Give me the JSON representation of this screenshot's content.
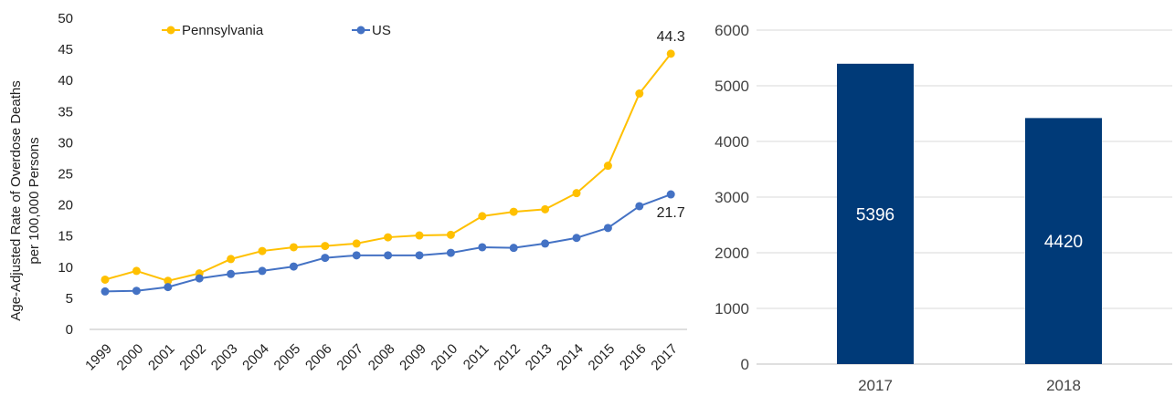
{
  "chart_data": [
    {
      "type": "line",
      "ylabel": [
        "Age-Adjusted Rate of Overdose Deaths",
        "per 100,000 Persons"
      ],
      "ylim": [
        0,
        50
      ],
      "yticks": [
        0,
        5,
        10,
        15,
        20,
        25,
        30,
        35,
        40,
        45,
        50
      ],
      "x": [
        "1999",
        "2000",
        "2001",
        "2002",
        "2003",
        "2004",
        "2005",
        "2006",
        "2007",
        "2008",
        "2009",
        "2010",
        "2011",
        "2012",
        "2013",
        "2014",
        "2015",
        "2016",
        "2017"
      ],
      "series": [
        {
          "name": "Pennsylvania",
          "color": "#FFC000",
          "values": [
            8.0,
            9.4,
            7.8,
            9.0,
            11.3,
            12.6,
            13.2,
            13.4,
            13.8,
            14.8,
            15.1,
            15.2,
            18.2,
            18.9,
            19.3,
            21.9,
            26.3,
            37.9,
            44.3
          ]
        },
        {
          "name": "US",
          "color": "#4472C4",
          "values": [
            6.1,
            6.2,
            6.8,
            8.2,
            8.9,
            9.4,
            10.1,
            11.5,
            11.9,
            11.9,
            11.9,
            12.3,
            13.2,
            13.1,
            13.8,
            14.7,
            16.3,
            19.8,
            21.7
          ]
        }
      ],
      "data_labels": [
        {
          "series": "Pennsylvania",
          "x": "2017",
          "text": "44.3"
        },
        {
          "series": "US",
          "x": "2017",
          "text": "21.7"
        }
      ],
      "legend": "top",
      "grid": false
    },
    {
      "type": "bar",
      "categories": [
        "2017",
        "2018"
      ],
      "values": [
        5396,
        4420
      ],
      "bar_labels": [
        "5396",
        "4420"
      ],
      "color": "#003A78",
      "ylim": [
        0,
        6000
      ],
      "yticks": [
        0,
        1000,
        2000,
        3000,
        4000,
        5000,
        6000
      ],
      "grid": true
    }
  ]
}
